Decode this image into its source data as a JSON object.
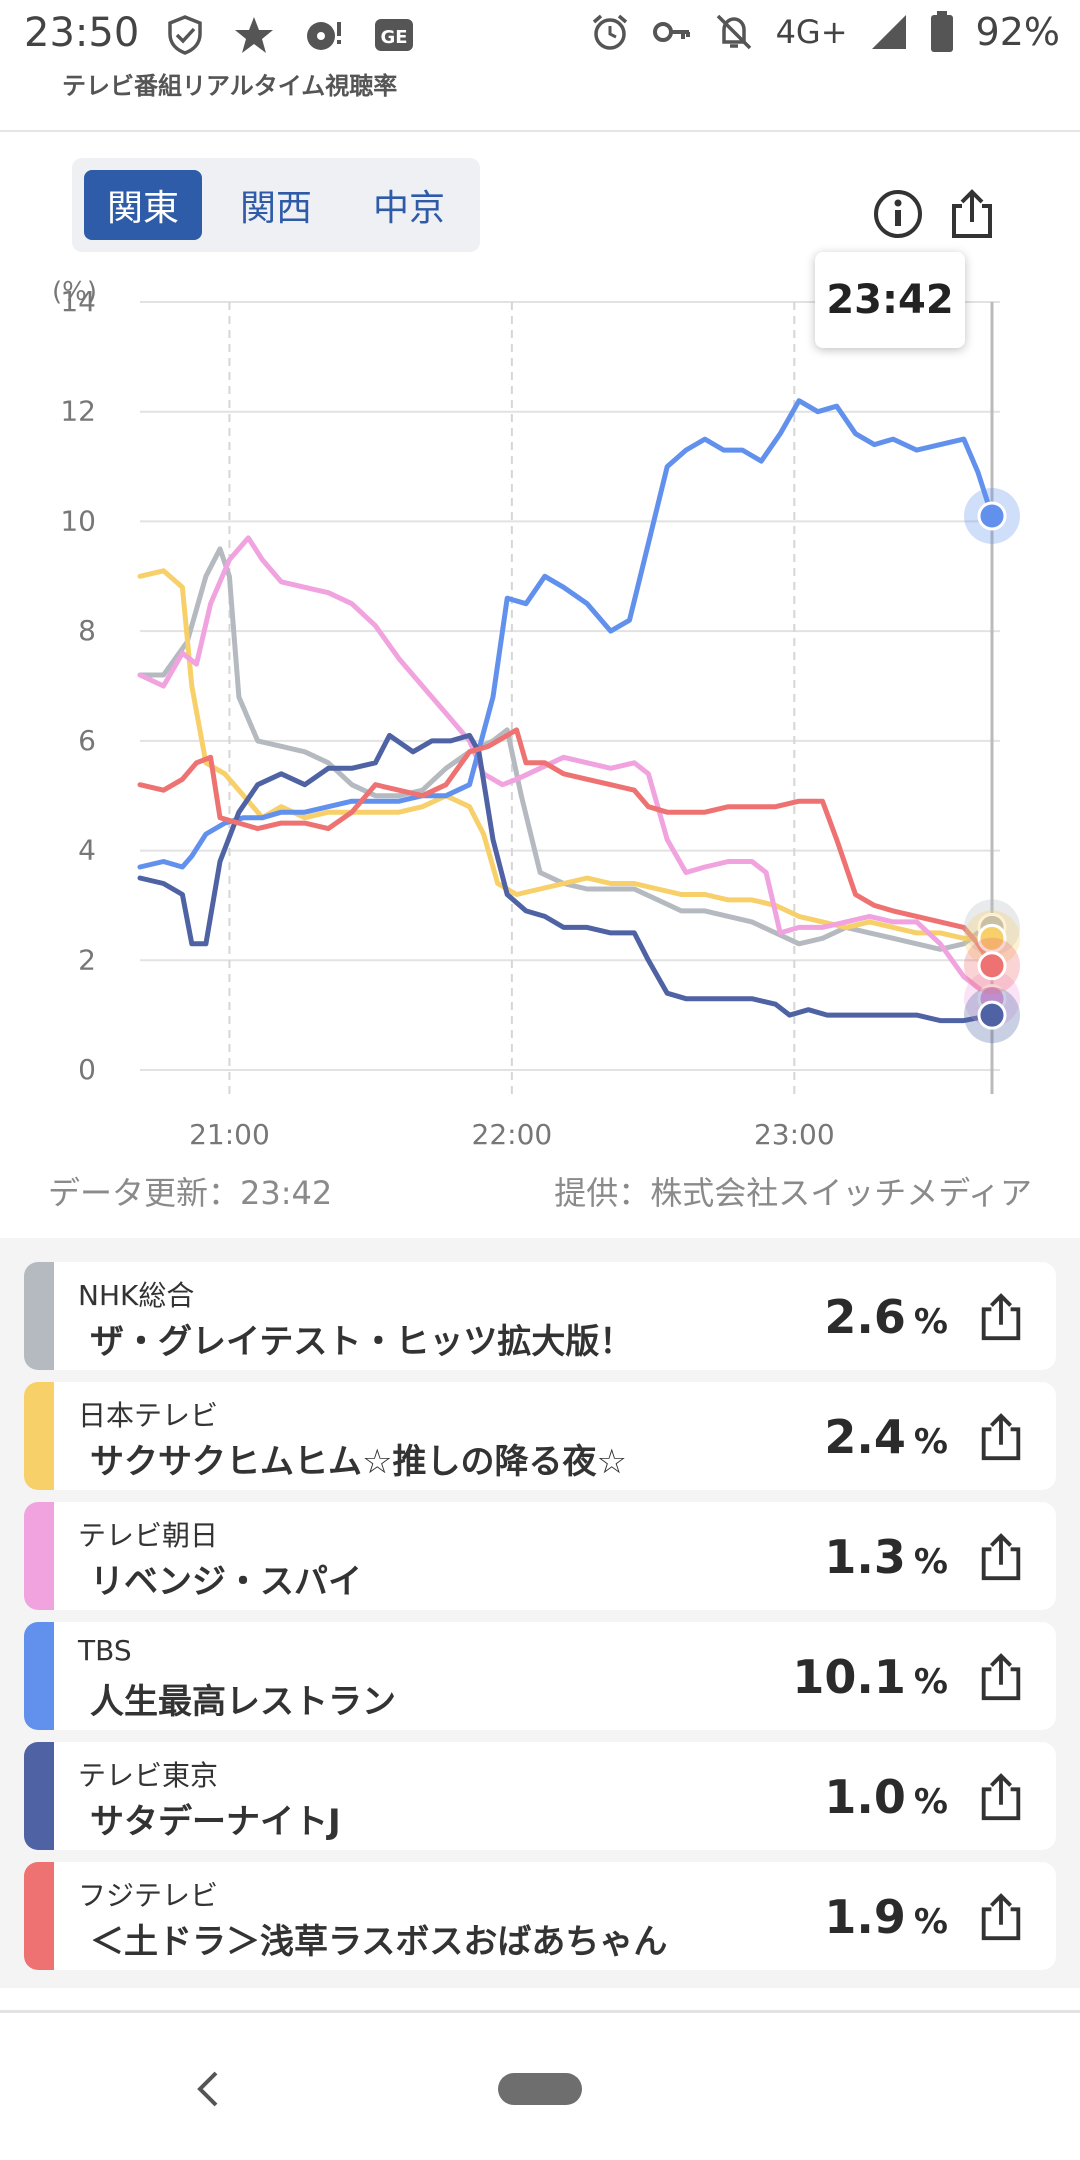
{
  "status_bar": {
    "time": "23:50",
    "network": "4G+",
    "battery": "92%",
    "icons": [
      "shield-check-icon",
      "star-icon",
      "record-icon",
      "ge-badge-icon",
      "alarm-icon",
      "key-icon",
      "bell-off-icon",
      "signal-icon",
      "battery-icon"
    ],
    "ge_label": "GE"
  },
  "app": {
    "name": "テレビ番組リアルタイム視聴率"
  },
  "regions": {
    "items": [
      "関東",
      "関西",
      "中京"
    ],
    "selected": "関東"
  },
  "tooltip": {
    "time": "23:42"
  },
  "chart_data": {
    "type": "line",
    "ylabel": "(%)",
    "ylim": [
      0,
      14
    ],
    "yticks": [
      "0",
      "2",
      "4",
      "6",
      "8",
      "10",
      "12",
      "14"
    ],
    "xticks": [
      "21:00",
      "22:00",
      "23:00"
    ],
    "x_range": [
      "20:41",
      "23:42"
    ],
    "cursor_time": "23:42",
    "grid": true,
    "series": [
      {
        "name": "NHK総合",
        "color": "#b5b9c0",
        "points": [
          [
            0,
            7.2
          ],
          [
            5,
            7.2
          ],
          [
            10,
            7.8
          ],
          [
            14,
            9
          ],
          [
            17,
            9.5
          ],
          [
            19,
            9
          ],
          [
            21,
            6.8
          ],
          [
            25,
            6.0
          ],
          [
            30,
            5.9
          ],
          [
            35,
            5.8
          ],
          [
            40,
            5.6
          ],
          [
            45,
            5.2
          ],
          [
            50,
            5.0
          ],
          [
            55,
            5.0
          ],
          [
            60,
            5.1
          ],
          [
            65,
            5.5
          ],
          [
            70,
            5.8
          ],
          [
            75,
            6.0
          ],
          [
            78,
            6.2
          ],
          [
            81,
            5.0
          ],
          [
            85,
            3.6
          ],
          [
            90,
            3.4
          ],
          [
            95,
            3.3
          ],
          [
            100,
            3.3
          ],
          [
            105,
            3.3
          ],
          [
            110,
            3.1
          ],
          [
            115,
            2.9
          ],
          [
            120,
            2.9
          ],
          [
            125,
            2.8
          ],
          [
            130,
            2.7
          ],
          [
            135,
            2.5
          ],
          [
            140,
            2.3
          ],
          [
            145,
            2.4
          ],
          [
            150,
            2.6
          ],
          [
            155,
            2.5
          ],
          [
            160,
            2.4
          ],
          [
            165,
            2.3
          ],
          [
            170,
            2.2
          ],
          [
            175,
            2.3
          ],
          [
            178,
            2.5
          ],
          [
            181,
            2.6
          ]
        ]
      },
      {
        "name": "日本テレビ",
        "color": "#f7d06a",
        "points": [
          [
            0,
            9.0
          ],
          [
            5,
            9.1
          ],
          [
            9,
            8.8
          ],
          [
            11,
            7
          ],
          [
            14,
            5.6
          ],
          [
            18,
            5.4
          ],
          [
            22,
            5.0
          ],
          [
            26,
            4.6
          ],
          [
            30,
            4.8
          ],
          [
            35,
            4.6
          ],
          [
            40,
            4.7
          ],
          [
            45,
            4.7
          ],
          [
            50,
            4.7
          ],
          [
            55,
            4.7
          ],
          [
            60,
            4.8
          ],
          [
            65,
            5.0
          ],
          [
            70,
            4.8
          ],
          [
            73,
            4.3
          ],
          [
            76,
            3.4
          ],
          [
            80,
            3.2
          ],
          [
            85,
            3.3
          ],
          [
            90,
            3.4
          ],
          [
            95,
            3.5
          ],
          [
            100,
            3.4
          ],
          [
            105,
            3.4
          ],
          [
            110,
            3.3
          ],
          [
            115,
            3.2
          ],
          [
            120,
            3.2
          ],
          [
            125,
            3.1
          ],
          [
            130,
            3.1
          ],
          [
            135,
            3.0
          ],
          [
            140,
            2.8
          ],
          [
            145,
            2.7
          ],
          [
            150,
            2.6
          ],
          [
            155,
            2.7
          ],
          [
            160,
            2.6
          ],
          [
            165,
            2.5
          ],
          [
            170,
            2.5
          ],
          [
            175,
            2.4
          ],
          [
            181,
            2.4
          ]
        ]
      },
      {
        "name": "テレビ朝日",
        "color": "#f0a3de",
        "points": [
          [
            0,
            7.2
          ],
          [
            5,
            7.0
          ],
          [
            9,
            7.6
          ],
          [
            12,
            7.4
          ],
          [
            15,
            8.5
          ],
          [
            19,
            9.3
          ],
          [
            23,
            9.7
          ],
          [
            26,
            9.3
          ],
          [
            30,
            8.9
          ],
          [
            35,
            8.8
          ],
          [
            40,
            8.7
          ],
          [
            45,
            8.5
          ],
          [
            50,
            8.1
          ],
          [
            55,
            7.5
          ],
          [
            60,
            7.0
          ],
          [
            65,
            6.5
          ],
          [
            70,
            6.0
          ],
          [
            73,
            5.4
          ],
          [
            77,
            5.2
          ],
          [
            80,
            5.3
          ],
          [
            85,
            5.5
          ],
          [
            90,
            5.7
          ],
          [
            95,
            5.6
          ],
          [
            100,
            5.5
          ],
          [
            105,
            5.6
          ],
          [
            108,
            5.4
          ],
          [
            112,
            4.2
          ],
          [
            116,
            3.6
          ],
          [
            120,
            3.7
          ],
          [
            125,
            3.8
          ],
          [
            130,
            3.8
          ],
          [
            133,
            3.6
          ],
          [
            136,
            2.5
          ],
          [
            140,
            2.6
          ],
          [
            145,
            2.6
          ],
          [
            150,
            2.7
          ],
          [
            155,
            2.8
          ],
          [
            160,
            2.7
          ],
          [
            165,
            2.7
          ],
          [
            170,
            2.3
          ],
          [
            175,
            1.7
          ],
          [
            178,
            1.5
          ],
          [
            181,
            1.3
          ]
        ]
      },
      {
        "name": "TBS",
        "color": "#6191ec",
        "points": [
          [
            0,
            3.7
          ],
          [
            5,
            3.8
          ],
          [
            9,
            3.7
          ],
          [
            11,
            3.9
          ],
          [
            14,
            4.3
          ],
          [
            18,
            4.5
          ],
          [
            22,
            4.6
          ],
          [
            26,
            4.6
          ],
          [
            30,
            4.7
          ],
          [
            35,
            4.7
          ],
          [
            40,
            4.8
          ],
          [
            45,
            4.9
          ],
          [
            50,
            4.9
          ],
          [
            55,
            4.9
          ],
          [
            60,
            5.0
          ],
          [
            65,
            5.0
          ],
          [
            70,
            5.2
          ],
          [
            75,
            6.8
          ],
          [
            78,
            8.6
          ],
          [
            82,
            8.5
          ],
          [
            86,
            9.0
          ],
          [
            90,
            8.8
          ],
          [
            95,
            8.5
          ],
          [
            100,
            8.0
          ],
          [
            104,
            8.2
          ],
          [
            108,
            9.6
          ],
          [
            112,
            11.0
          ],
          [
            116,
            11.3
          ],
          [
            120,
            11.5
          ],
          [
            124,
            11.3
          ],
          [
            128,
            11.3
          ],
          [
            132,
            11.1
          ],
          [
            136,
            11.6
          ],
          [
            140,
            12.2
          ],
          [
            144,
            12.0
          ],
          [
            148,
            12.1
          ],
          [
            152,
            11.6
          ],
          [
            156,
            11.4
          ],
          [
            160,
            11.5
          ],
          [
            165,
            11.3
          ],
          [
            170,
            11.4
          ],
          [
            175,
            11.5
          ],
          [
            178,
            10.9
          ],
          [
            181,
            10.1
          ]
        ]
      },
      {
        "name": "テレビ東京",
        "color": "#4e62a4",
        "points": [
          [
            0,
            3.5
          ],
          [
            5,
            3.4
          ],
          [
            9,
            3.2
          ],
          [
            11,
            2.3
          ],
          [
            14,
            2.3
          ],
          [
            17,
            3.8
          ],
          [
            21,
            4.7
          ],
          [
            25,
            5.2
          ],
          [
            30,
            5.4
          ],
          [
            35,
            5.2
          ],
          [
            40,
            5.5
          ],
          [
            45,
            5.5
          ],
          [
            50,
            5.6
          ],
          [
            53,
            6.1
          ],
          [
            58,
            5.8
          ],
          [
            62,
            6.0
          ],
          [
            66,
            6.0
          ],
          [
            70,
            6.1
          ],
          [
            72,
            5.8
          ],
          [
            75,
            4.2
          ],
          [
            78,
            3.2
          ],
          [
            82,
            2.9
          ],
          [
            86,
            2.8
          ],
          [
            90,
            2.6
          ],
          [
            95,
            2.6
          ],
          [
            100,
            2.5
          ],
          [
            105,
            2.5
          ],
          [
            108,
            2.0
          ],
          [
            112,
            1.4
          ],
          [
            116,
            1.3
          ],
          [
            120,
            1.3
          ],
          [
            125,
            1.3
          ],
          [
            130,
            1.3
          ],
          [
            135,
            1.2
          ],
          [
            138,
            1.0
          ],
          [
            142,
            1.1
          ],
          [
            146,
            1.0
          ],
          [
            150,
            1.0
          ],
          [
            155,
            1.0
          ],
          [
            160,
            1.0
          ],
          [
            165,
            1.0
          ],
          [
            170,
            0.9
          ],
          [
            175,
            0.9
          ],
          [
            181,
            1.0
          ]
        ]
      },
      {
        "name": "フジテレビ",
        "color": "#ee7272",
        "points": [
          [
            0,
            5.2
          ],
          [
            5,
            5.1
          ],
          [
            9,
            5.3
          ],
          [
            12,
            5.6
          ],
          [
            15,
            5.7
          ],
          [
            17,
            4.6
          ],
          [
            21,
            4.5
          ],
          [
            25,
            4.4
          ],
          [
            30,
            4.5
          ],
          [
            35,
            4.5
          ],
          [
            40,
            4.4
          ],
          [
            45,
            4.7
          ],
          [
            50,
            5.2
          ],
          [
            55,
            5.1
          ],
          [
            60,
            5.0
          ],
          [
            65,
            5.2
          ],
          [
            70,
            5.8
          ],
          [
            74,
            5.9
          ],
          [
            78,
            6.1
          ],
          [
            80,
            6.2
          ],
          [
            82,
            5.6
          ],
          [
            86,
            5.6
          ],
          [
            90,
            5.4
          ],
          [
            95,
            5.3
          ],
          [
            100,
            5.2
          ],
          [
            105,
            5.1
          ],
          [
            108,
            4.8
          ],
          [
            112,
            4.7
          ],
          [
            116,
            4.7
          ],
          [
            120,
            4.7
          ],
          [
            125,
            4.8
          ],
          [
            130,
            4.8
          ],
          [
            135,
            4.8
          ],
          [
            140,
            4.9
          ],
          [
            145,
            4.9
          ],
          [
            148,
            4.2
          ],
          [
            152,
            3.2
          ],
          [
            156,
            3.0
          ],
          [
            160,
            2.9
          ],
          [
            165,
            2.8
          ],
          [
            170,
            2.7
          ],
          [
            175,
            2.6
          ],
          [
            178,
            2.3
          ],
          [
            181,
            1.9
          ]
        ]
      }
    ]
  },
  "footer": {
    "updated": "データ更新：23:42",
    "provider": "提供：株式会社スイッチメディア"
  },
  "programs": [
    {
      "station": "NHK総合",
      "title": "ザ・グレイテスト・ヒッツ拡大版！",
      "rating": "2.6",
      "unit": "%",
      "color": "#b5b9c0"
    },
    {
      "station": "日本テレビ",
      "title": "サクサクヒムヒム☆推しの降る夜☆",
      "rating": "2.4",
      "unit": "%",
      "color": "#f7d06a"
    },
    {
      "station": "テレビ朝日",
      "title": "リベンジ・スパイ",
      "rating": "1.3",
      "unit": "%",
      "color": "#f0a3de"
    },
    {
      "station": "TBS",
      "title": "人生最高レストラン",
      "rating": "10.1",
      "unit": "%",
      "color": "#6191ec"
    },
    {
      "station": "テレビ東京",
      "title": "サタデーナイトJ",
      "rating": "1.0",
      "unit": "%",
      "color": "#4e62a4"
    },
    {
      "station": "フジテレビ",
      "title": "＜土ドラ＞浅草ラスボスおばあちゃん",
      "rating": "1.9",
      "unit": "%",
      "color": "#ee7272"
    }
  ]
}
